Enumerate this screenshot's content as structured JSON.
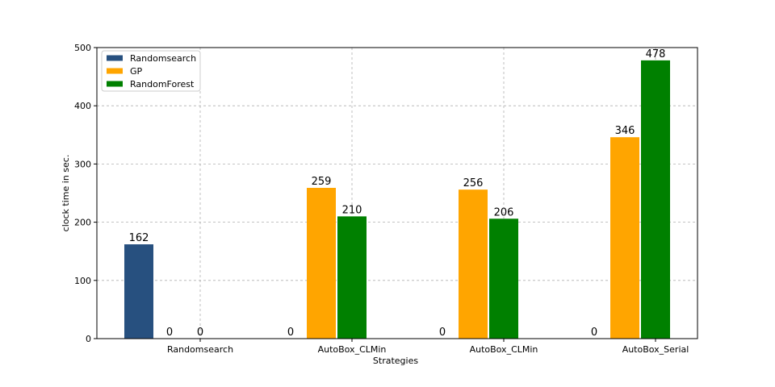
{
  "chart_data": {
    "type": "bar",
    "xlabel": "Strategies",
    "ylabel": "clock time in sec.",
    "categories": [
      "Randomsearch",
      "AutoBox_CLMin",
      "AutoBox_CLMin",
      "AutoBox_Serial"
    ],
    "series": [
      {
        "name": "Randomsearch",
        "color": "#27507f",
        "values": [
          162,
          0,
          0,
          0
        ]
      },
      {
        "name": "GP",
        "color": "#ffa500",
        "values": [
          0,
          259,
          256,
          346
        ]
      },
      {
        "name": "RandomForest",
        "color": "#008000",
        "values": [
          0,
          210,
          206,
          478
        ]
      }
    ],
    "ylim": [
      0,
      500
    ],
    "yticks": [
      0,
      100,
      200,
      300,
      400,
      500
    ],
    "grid": true,
    "legend_position": "top-left"
  }
}
